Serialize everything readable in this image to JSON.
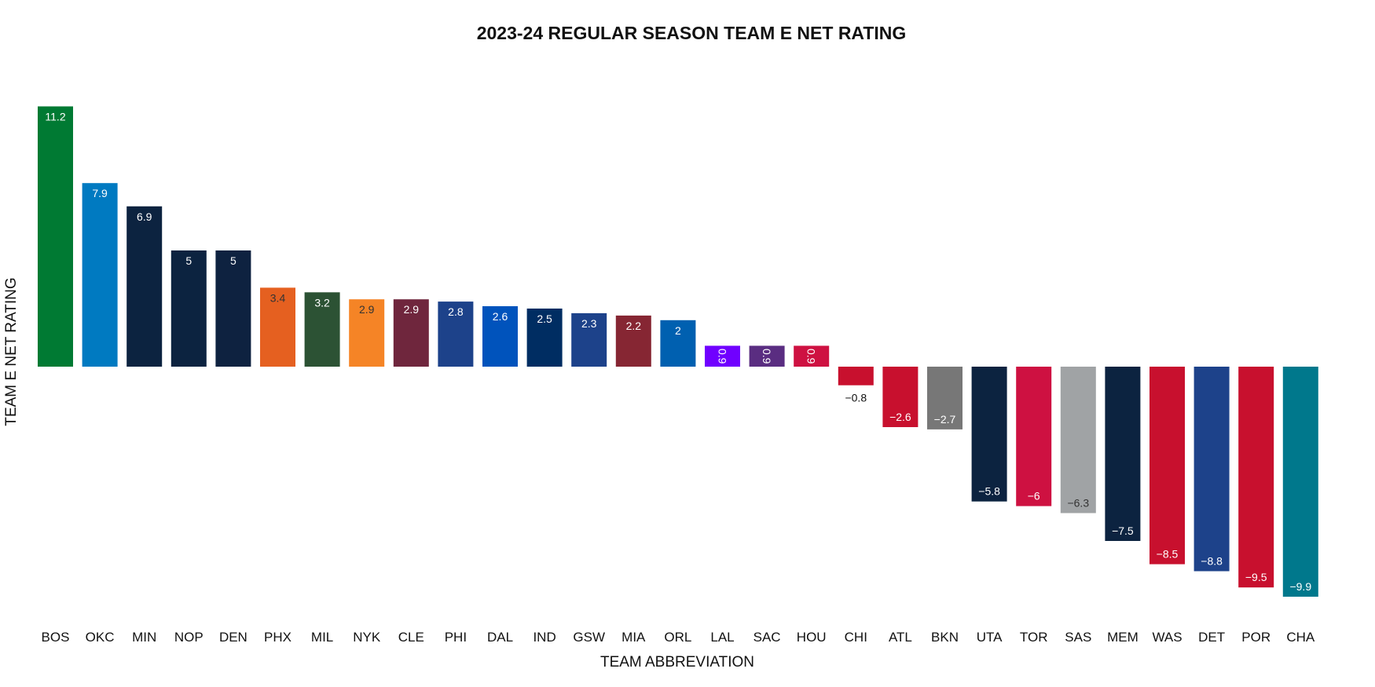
{
  "chart_data": {
    "type": "bar",
    "title": "2023-24 REGULAR SEASON TEAM E NET RATING",
    "xlabel": "TEAM ABBREVIATION",
    "ylabel": "TEAM E NET RATING",
    "ylim": [
      -11.3,
      14.5
    ],
    "grid": false,
    "legend": "none",
    "categories": [
      "BOS",
      "OKC",
      "MIN",
      "NOP",
      "DEN",
      "PHX",
      "MIL",
      "NYK",
      "CLE",
      "PHI",
      "DAL",
      "IND",
      "GSW",
      "MIA",
      "ORL",
      "LAL",
      "SAC",
      "HOU",
      "CHI",
      "ATL",
      "BKN",
      "UTA",
      "TOR",
      "SAS",
      "MEM",
      "WAS",
      "DET",
      "POR",
      "CHA"
    ],
    "values": [
      11.2,
      7.9,
      6.9,
      5,
      5,
      3.4,
      3.2,
      2.9,
      2.9,
      2.8,
      2.6,
      2.5,
      2.3,
      2.2,
      2,
      0.9,
      0.9,
      0.9,
      -0.8,
      -2.6,
      -2.7,
      -5.8,
      -6,
      -6.3,
      -7.5,
      -8.5,
      -8.8,
      -9.5,
      -9.9
    ],
    "data_labels": [
      "11.2",
      "7.9",
      "6.9",
      "5",
      "5",
      "3.4",
      "3.2",
      "2.9",
      "2.9",
      "2.8",
      "2.6",
      "2.5",
      "2.3",
      "2.2",
      "2",
      "0.9",
      "0.9",
      "0.9",
      "−0.8",
      "−2.6",
      "−2.7",
      "−5.8",
      "−6",
      "−6.3",
      "−7.5",
      "−8.5",
      "−8.8",
      "−9.5",
      "−9.9"
    ],
    "bar_colors": [
      "#007A33",
      "#007AC1",
      "#0C2340",
      "#0C2340",
      "#0E2240",
      "#E56020",
      "#2C5234",
      "#F58426",
      "#6F263D",
      "#1D428A",
      "#0053BC",
      "#002D62",
      "#1D428A",
      "#862633",
      "#0060B0",
      "#7000FF",
      "#5A2D81",
      "#CE1141",
      "#C8102E",
      "#C8102E",
      "#777777",
      "#0C2340",
      "#CE1141",
      "#A0A3A5",
      "#0C2340",
      "#C8102E",
      "#1D428A",
      "#C8102E",
      "#00788C"
    ],
    "label_colors": [
      "#ffffff",
      "#ffffff",
      "#ffffff",
      "#ffffff",
      "#ffffff",
      "#333333",
      "#ffffff",
      "#333333",
      "#ffffff",
      "#ffffff",
      "#ffffff",
      "#ffffff",
      "#ffffff",
      "#ffffff",
      "#ffffff",
      "#ffffff",
      "#ffffff",
      "#ffffff",
      "#111111",
      "#ffffff",
      "#ffffff",
      "#ffffff",
      "#ffffff",
      "#333333",
      "#ffffff",
      "#ffffff",
      "#ffffff",
      "#ffffff",
      "#ffffff"
    ],
    "rotated_labels": [
      false,
      false,
      false,
      false,
      false,
      false,
      false,
      false,
      false,
      false,
      false,
      false,
      false,
      false,
      false,
      true,
      true,
      true,
      false,
      false,
      false,
      false,
      false,
      false,
      false,
      false,
      false,
      false,
      false
    ],
    "outside_labels": [
      false,
      false,
      false,
      false,
      false,
      false,
      false,
      false,
      false,
      false,
      false,
      false,
      false,
      false,
      false,
      false,
      false,
      false,
      true,
      false,
      false,
      false,
      false,
      false,
      false,
      false,
      false,
      false,
      false
    ]
  }
}
